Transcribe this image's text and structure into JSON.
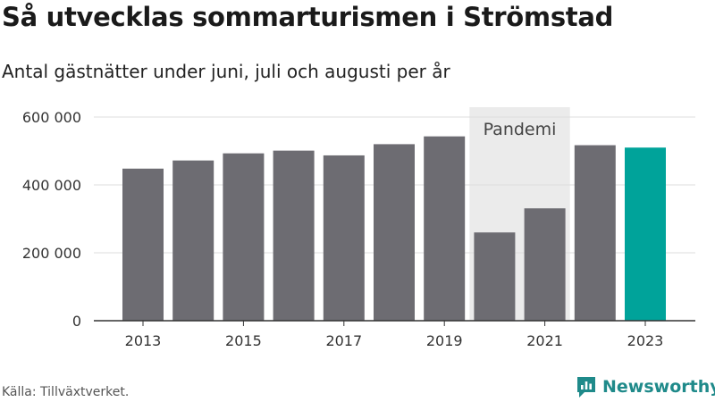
{
  "title": "Så utvecklas sommarturismen i Strömstad",
  "subtitle": "Antal gästnätter under juni, juli och augusti per år",
  "source": "Källa: Tillväxtverket.",
  "brand": {
    "name": "Newsworthy",
    "icon": "newsworthy-logo-icon",
    "color": "#1f8a8a"
  },
  "chart_data": {
    "type": "bar",
    "categories": [
      "2013",
      "2014",
      "2015",
      "2016",
      "2017",
      "2018",
      "2019",
      "2020",
      "2021",
      "2022",
      "2023"
    ],
    "values": [
      448000,
      472000,
      493000,
      501000,
      487000,
      520000,
      543000,
      260000,
      331000,
      517000,
      510000
    ],
    "x_tick_labels": [
      "2013",
      "2015",
      "2017",
      "2019",
      "2021",
      "2023"
    ],
    "y_ticks": [
      0,
      200000,
      400000,
      600000
    ],
    "y_tick_labels": [
      "0",
      "200 000",
      "400 000",
      "600 000"
    ],
    "ylim": [
      0,
      600000
    ],
    "grid": true,
    "highlight_band": {
      "label": "Pandemi",
      "from": "2020",
      "to": "2021",
      "color": "#ebebeb"
    },
    "colors": {
      "default": "#6d6c72",
      "highlight": "#00a39a",
      "grid": "#dddddd",
      "axis": "#333333"
    },
    "highlight_category": "2023"
  }
}
